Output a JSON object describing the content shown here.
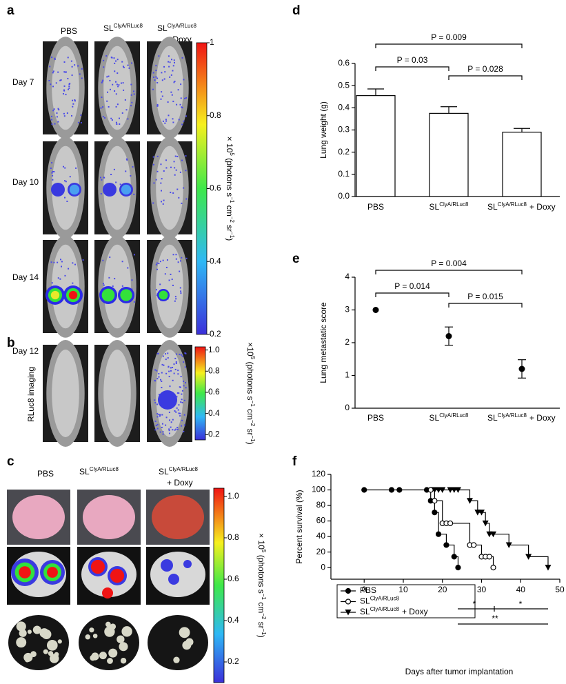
{
  "panel_labels": [
    "a",
    "b",
    "c",
    "d",
    "e",
    "f"
  ],
  "panel_a": {
    "columns": [
      {
        "base": "PBS"
      },
      {
        "base": "SL",
        "sup": "ClyA/RLuc8"
      },
      {
        "base": "SL",
        "sup": "ClyA/RLuc8",
        "suffix": "+ Doxy"
      }
    ],
    "rows": [
      "Day 7",
      "Day 10",
      "Day 14"
    ],
    "colorbar": {
      "lim": [
        0.2,
        1
      ],
      "ticks": [
        1,
        0.8,
        0.6,
        0.4,
        0.2
      ],
      "label": [
        {
          "t": "× 10"
        },
        {
          "sup": "5"
        },
        {
          "t": " (photons s"
        },
        {
          "sup": "−1"
        },
        {
          "t": " cm"
        },
        {
          "sup": "−2"
        },
        {
          "t": " sr"
        },
        {
          "sup": "−1"
        },
        {
          "t": ")"
        }
      ]
    }
  },
  "panel_b": {
    "row": "Day 12",
    "side_label": "RLuc8 imaging",
    "colorbar": {
      "lim": [
        0.15,
        1.03
      ],
      "ticks": [
        {
          "value": 1,
          "label": "1.0"
        },
        0.8,
        0.6,
        0.4,
        0.2
      ],
      "label": [
        {
          "t": "×10"
        },
        {
          "sup": "5"
        },
        {
          "t": " (photons s"
        },
        {
          "sup": "−1"
        },
        {
          "t": " cm"
        },
        {
          "sup": "−2"
        },
        {
          "t": " sr"
        },
        {
          "sup": "−1"
        },
        {
          "t": ")"
        }
      ]
    }
  },
  "panel_c": {
    "columns": [
      {
        "base": "PBS"
      },
      {
        "base": "SL",
        "sup": "ClyA/RLuc8"
      },
      {
        "base": "SL",
        "sup": "ClyA/RLuc8",
        "suffix": "+ Doxy"
      }
    ],
    "colorbar": {
      "lim": [
        0.1,
        1.04
      ],
      "ticks": [
        {
          "value": 1,
          "label": "1.0"
        },
        0.8,
        0.6,
        0.4,
        0.2
      ],
      "label": [
        {
          "t": "× 10"
        },
        {
          "sup": "5"
        },
        {
          "t": " (photons s"
        },
        {
          "sup": "−1"
        },
        {
          "t": " cm"
        },
        {
          "sup": "−2"
        },
        {
          "t": " sr"
        },
        {
          "sup": "−1"
        },
        {
          "t": ")"
        }
      ]
    }
  },
  "chart_data": [
    {
      "type": "bar",
      "ylabel": "Lung weight (g)",
      "categories": [
        {
          "base": "PBS"
        },
        {
          "base": "SL",
          "sup": "ClyA/RLuc8"
        },
        {
          "base": "SL",
          "sup": "ClyA/RLuc8",
          "suffix": "+ Doxy"
        }
      ],
      "values": [
        0.455,
        0.375,
        0.29
      ],
      "errors": [
        0.03,
        0.03,
        0.017
      ],
      "color": "#ffffff",
      "ylim": [
        0,
        0.6
      ],
      "yticks": [
        {
          "value": 0,
          "label": "0.0"
        },
        0.1,
        0.2,
        0.3,
        0.4,
        0.5,
        0.6
      ],
      "annotations": [
        "P = 0.009",
        "P = 0.03",
        "P = 0.028"
      ]
    },
    {
      "type": "dot",
      "ylabel": "Lung metastatic score",
      "categories": [
        {
          "base": "PBS"
        },
        {
          "base": "SL",
          "sup": "ClyA/RLuc8"
        },
        {
          "base": "SL",
          "sup": "ClyA/RLuc8",
          "suffix": "+ Doxy"
        }
      ],
      "values": [
        3,
        2.2,
        1.2
      ],
      "errors": [
        null,
        0.28,
        0.28
      ],
      "color": "#000000",
      "ylim": [
        0,
        4
      ],
      "yticks": [
        0,
        1,
        2,
        3,
        4
      ],
      "annotations": [
        "P = 0.004",
        "P = 0.014",
        "P = 0.015"
      ]
    },
    {
      "type": "survival",
      "xlabel": "Days after tumor implantation",
      "ylabel": "Percent survival (%)",
      "xlim": [
        -8.5,
        50
      ],
      "xticks": [
        0,
        10,
        20,
        30,
        40,
        50
      ],
      "ylim": [
        -15,
        120
      ],
      "yticks": [
        0,
        20,
        40,
        60,
        80,
        100,
        120
      ],
      "series": [
        {
          "name": {
            "base": "PBS"
          },
          "marker": "circle",
          "color": "#000000",
          "x": [
            0,
            7,
            9,
            16,
            17,
            18,
            19,
            21,
            23,
            24
          ],
          "values": [
            100,
            100,
            100,
            100,
            86,
            71,
            43,
            29,
            14,
            0
          ]
        },
        {
          "name": {
            "base": "SL",
            "sup": "ClyA/RLuc8"
          },
          "marker": "open-circle",
          "color": "#000000",
          "x": [
            17,
            18,
            20,
            21,
            22,
            27,
            28,
            30,
            31,
            32,
            33
          ],
          "values": [
            100,
            86,
            57,
            57,
            57,
            29,
            29,
            14,
            14,
            14,
            0
          ]
        },
        {
          "name": {
            "base": "SL",
            "sup": "ClyA/RLuc8",
            "suffix": "+ Doxy"
          },
          "marker": "triangle",
          "color": "#000000",
          "x": [
            18,
            19,
            20,
            22,
            23,
            24,
            27,
            29,
            30,
            31,
            32,
            33,
            37,
            42,
            47
          ],
          "values": [
            100,
            100,
            100,
            100,
            100,
            100,
            86,
            71,
            71,
            57,
            43,
            43,
            29,
            14,
            0
          ]
        }
      ],
      "annotations": [
        "*",
        "*",
        "**"
      ]
    }
  ]
}
